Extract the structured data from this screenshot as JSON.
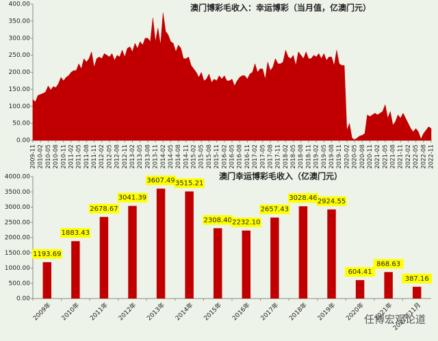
{
  "chart_data": [
    {
      "type": "area",
      "title": "澳门博彩毛收入：幸运博彩（当月值，亿澳门元）",
      "color": "#c00000",
      "grid": false,
      "categories": [
        "2009-11",
        null,
        null,
        "2010-02",
        null,
        null,
        "2010-05",
        null,
        null,
        "2010-08",
        null,
        null,
        "2010-11",
        null,
        null,
        "2011-02",
        null,
        null,
        "2011-05",
        null,
        null,
        "2011-08",
        null,
        null,
        "2011-11",
        null,
        null,
        "2012-02",
        null,
        null,
        "2012-05",
        null,
        null,
        "2012-08",
        null,
        null,
        "2012-11",
        null,
        null,
        "2013-02",
        null,
        null,
        "2013-05",
        null,
        null,
        "2013-08",
        null,
        null,
        "2013-11",
        null,
        null,
        "2014-02",
        null,
        null,
        "2014-05",
        null,
        null,
        "2014-08",
        null,
        null,
        "2014-11",
        null,
        null,
        "2015-02",
        null,
        null,
        "2015-05",
        null,
        null,
        "2015-08",
        null,
        null,
        "2015-11",
        null,
        null,
        "2016-02",
        null,
        null,
        "2016-05",
        null,
        null,
        "2016-08",
        null,
        null,
        "2016-11",
        null,
        null,
        "2017-02",
        null,
        null,
        "2017-05",
        null,
        null,
        "2017-08",
        null,
        null,
        "2017-11",
        null,
        null,
        "2018-02",
        null,
        null,
        "2018-05",
        null,
        null,
        "2018-08",
        null,
        null,
        "2018-11",
        null,
        null,
        "2019-02",
        null,
        null,
        "2019-05",
        null,
        null,
        "2019-08",
        null,
        null,
        "2019-11",
        null,
        null,
        "2020-02",
        null,
        null,
        "2020-05",
        null,
        null,
        "2020-08",
        null,
        null,
        "2020-11",
        null,
        null,
        "2021-02",
        null,
        null,
        "2021-05",
        null,
        null,
        "2021-08",
        null,
        null,
        "2021-11",
        null,
        null,
        "2022-02",
        null,
        null,
        "2022-05",
        null,
        null,
        "2022-08",
        null,
        null,
        "2022-11"
      ],
      "values": [
        120,
        113,
        132,
        135,
        138,
        142,
        160,
        148,
        158,
        155,
        166,
        185,
        175,
        185,
        190,
        200,
        205,
        205,
        225,
        210,
        240,
        230,
        240,
        260,
        215,
        240,
        245,
        240,
        255,
        250,
        245,
        255,
        235,
        250,
        245,
        265,
        245,
        270,
        275,
        260,
        285,
        270,
        290,
        280,
        300,
        300,
        290,
        360,
        290,
        330,
        280,
        375,
        320,
        310,
        290,
        285,
        260,
        280,
        270,
        240,
        240,
        245,
        220,
        210,
        200,
        185,
        200,
        175,
        180,
        195,
        170,
        180,
        175,
        190,
        180,
        190,
        175,
        175,
        180,
        160,
        175,
        185,
        190,
        190,
        180,
        195,
        200,
        225,
        200,
        210,
        210,
        180,
        230,
        205,
        215,
        240,
        225,
        225,
        230,
        265,
        245,
        240,
        250,
        220,
        260,
        250,
        240,
        260,
        240,
        240,
        250,
        245,
        255,
        240,
        255,
        235,
        245,
        245,
        220,
        265,
        225,
        220,
        220,
        30,
        50,
        7,
        2,
        7,
        13,
        15,
        20,
        75,
        70,
        75,
        80,
        75,
        80,
        85,
        105,
        65,
        85,
        45,
        55,
        75,
        65,
        80,
        65,
        50,
        35,
        25,
        35,
        25,
        4,
        20,
        30,
        40,
        35
      ],
      "ylim": [
        0,
        400
      ],
      "yticks": [
        {
          "value": 0,
          "label": "0.00"
        },
        {
          "value": 50,
          "label": "50.00"
        },
        {
          "value": 100,
          "label": "100.00"
        },
        {
          "value": 150,
          "label": "150.00"
        },
        {
          "value": 200,
          "label": "200.00"
        },
        {
          "value": 250,
          "label": "250.00"
        },
        {
          "value": 300,
          "label": "300.00"
        },
        {
          "value": 350,
          "label": "350.00"
        },
        {
          "value": 400,
          "label": "400.00"
        }
      ]
    },
    {
      "type": "bar",
      "title": "澳门幸运博彩毛收入（亿澳门元）",
      "color": "#c00000",
      "grid": false,
      "label_color": "#ffff00",
      "categories": [
        "2009年",
        "2010年",
        "2011年",
        "2012年",
        "2013年",
        "2014年",
        "2015年",
        "2016年",
        "2017年",
        "2018年",
        "2019年",
        "2020年",
        "2021年",
        "2022年11月"
      ],
      "values": [
        1193.69,
        1883.43,
        2678.67,
        3041.39,
        3607.49,
        3515.21,
        2308.4,
        2232.1,
        2657.43,
        3028.46,
        2924.55,
        604.41,
        868.63,
        387.16
      ],
      "value_labels": [
        "1193.69",
        "1883.43",
        "2678.67",
        "3041.39",
        "3607.49",
        "3515.21",
        "2308.40",
        "2232.10",
        "2657.43",
        "3028.46",
        "2924.55",
        "604.41",
        "868.63",
        "387.16"
      ],
      "ylim": [
        0,
        4000
      ],
      "yticks": [
        {
          "value": 0,
          "label": "0.00"
        },
        {
          "value": 500,
          "label": "500.00"
        },
        {
          "value": 1000,
          "label": "1000.00"
        },
        {
          "value": 1500,
          "label": "1500.00"
        },
        {
          "value": 2000,
          "label": "2000.00"
        },
        {
          "value": 2500,
          "label": "2500.00"
        },
        {
          "value": 3000,
          "label": "3000.00"
        },
        {
          "value": 3500,
          "label": "3500.00"
        },
        {
          "value": 4000,
          "label": "4000.00"
        }
      ]
    }
  ],
  "watermark": "任博宏观论道"
}
